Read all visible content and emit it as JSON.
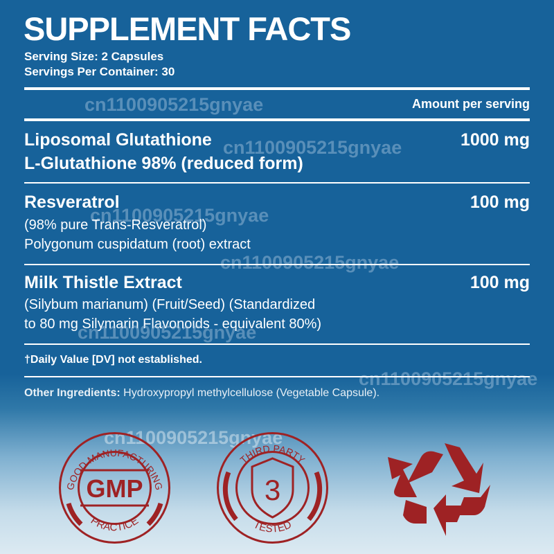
{
  "title": "SUPPLEMENT FACTS",
  "serving_size": "Serving Size: 2 Capsules",
  "servings_per_container": "Servings Per Container: 30",
  "amount_header": "Amount per serving",
  "ingredients": [
    {
      "name": "Liposomal Glutathione",
      "detail": [
        "L-Glutathione 98% (reduced form)"
      ],
      "amount": "1000 mg"
    },
    {
      "name": "Resveratrol",
      "detail": [
        "(98% pure Trans-Resveratrol)",
        "Polygonum cuspidatum (root) extract"
      ],
      "amount": "100 mg"
    },
    {
      "name": "Milk Thistle Extract",
      "detail": [
        "(Silybum marianum) (Fruit/Seed) (Standardized",
        "to 80 mg Silymarin Flavonoids - equivalent 80%)"
      ],
      "amount": "100 mg"
    }
  ],
  "daily_value_note": "†Daily Value [DV] not established.",
  "other_ingredients": {
    "label": "Other Ingredients:",
    "value": " Hydroxypropyl methylcellulose (Vegetable Capsule)."
  },
  "watermark": "cn1100905215gnyae",
  "badges": {
    "gmp": {
      "top": "GOOD MANUFACTURING",
      "center": "GMP",
      "bottom": "PRACTICE"
    },
    "third_party": {
      "top": "THIRD PARTY",
      "center": "3",
      "bottom": "TESTED"
    },
    "recycle": {
      "icon": "recycle-icon"
    }
  },
  "colors": {
    "background": "#17629a",
    "badge": "#9e2224",
    "text": "#ffffff"
  }
}
